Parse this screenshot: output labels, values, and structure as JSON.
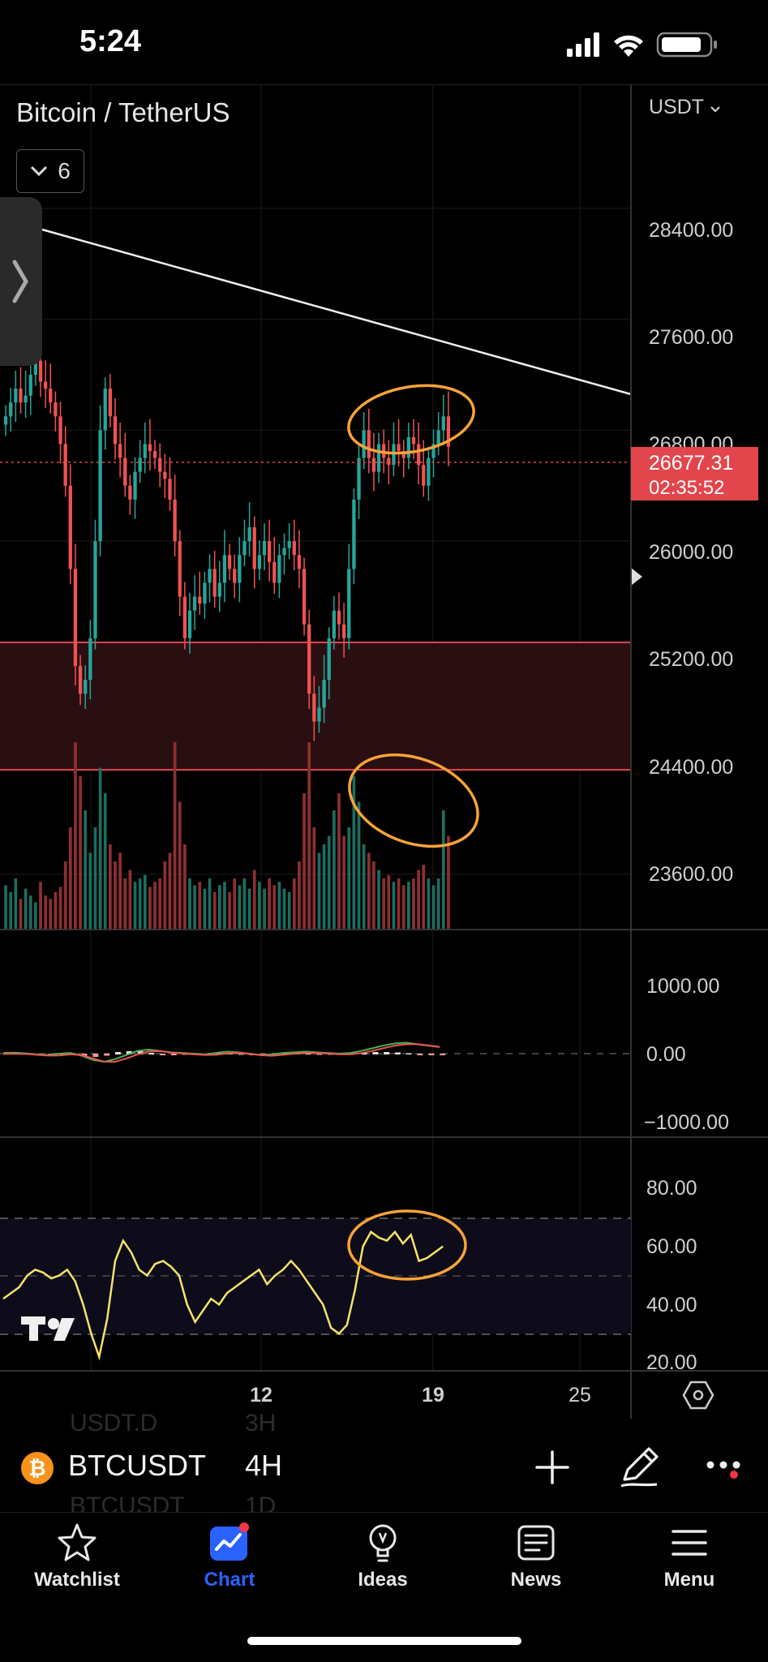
{
  "status_bar": {
    "time": "5:24"
  },
  "header": {
    "pair_title": "Bitcoin / TetherUS",
    "indicator_count": "6",
    "currency": "USDT"
  },
  "price_axis": {
    "labels": [
      "28400.00",
      "27600.00",
      "26800.00",
      "26000.00",
      "25200.00",
      "24400.00",
      "23600.00"
    ],
    "current_price": "26677.31",
    "countdown": "02:35:52"
  },
  "macd_axis": {
    "labels": [
      "1000.00",
      "0.00",
      "−1000.00"
    ]
  },
  "rsi_axis": {
    "labels": [
      "80.00",
      "60.00",
      "40.00",
      "20.00"
    ]
  },
  "time_axis": {
    "labels": [
      "12",
      "19",
      "25"
    ]
  },
  "colors": {
    "up": "#26a69a",
    "down": "#ef5350",
    "annotation": "#f7a23a",
    "rsi_line": "#f5e36b",
    "zone_fill": "#2a0f12",
    "zone_border": "#e2454b",
    "price_tag": "#e2454b",
    "accent": "#2962ff"
  },
  "toolbar": {
    "symbol": "BTCUSDT",
    "interval": "4H",
    "coin_glyph": "₿",
    "ghost_above": {
      "symbol": "USDT.D",
      "interval": "3H"
    },
    "ghost_below": {
      "symbol": "BTCUSDT",
      "interval": "1D"
    }
  },
  "tabs": [
    {
      "label": "Watchlist",
      "icon": "star-icon"
    },
    {
      "label": "Chart",
      "icon": "chart-icon"
    },
    {
      "label": "Ideas",
      "icon": "lightbulb-icon"
    },
    {
      "label": "News",
      "icon": "newspaper-icon"
    },
    {
      "label": "Menu",
      "icon": "hamburger-icon"
    }
  ],
  "chart_data": {
    "type": "candlestick",
    "symbol": "BTCUSDT",
    "interval": "4H",
    "price_range": [
      23200,
      29200
    ],
    "last_price": 26677.31,
    "x_ticks": [
      "12",
      "19",
      "25"
    ],
    "support_zone": [
      24400,
      25350
    ],
    "trendline": [
      [
        0,
        28500
      ],
      [
        148,
        27190
      ]
    ],
    "close": [
      26900,
      27000,
      27100,
      27000,
      27050,
      27200,
      27300,
      27150,
      27100,
      27000,
      26900,
      26700,
      26400,
      25800,
      25100,
      24900,
      25000,
      25300,
      26000,
      26800,
      27100,
      26900,
      26700,
      26600,
      26400,
      26300,
      26500,
      26600,
      26700,
      26650,
      26600,
      26500,
      26450,
      26300,
      26000,
      25600,
      25300,
      25500,
      25600,
      25550,
      25700,
      25800,
      25600,
      25700,
      25900,
      25800,
      25700,
      25900,
      26000,
      26100,
      25800,
      25900,
      26000,
      25850,
      25700,
      25900,
      25950,
      26000,
      25900,
      25800,
      25400,
      24900,
      24700,
      24800,
      25000,
      25300,
      25500,
      25400,
      25300,
      25800,
      26300,
      26600,
      26800,
      26600,
      26500,
      26700,
      26600,
      26550,
      26700,
      26650,
      26600,
      26750,
      26700,
      26550,
      26400,
      26600,
      26700,
      26800,
      26900,
      26680
    ],
    "volume": [
      26,
      22,
      30,
      18,
      24,
      20,
      16,
      28,
      20,
      18,
      22,
      25,
      40,
      60,
      110,
      90,
      70,
      45,
      60,
      95,
      80,
      50,
      40,
      45,
      30,
      35,
      28,
      30,
      32,
      25,
      28,
      30,
      40,
      45,
      110,
      75,
      50,
      30,
      26,
      28,
      24,
      30,
      22,
      26,
      28,
      22,
      30,
      26,
      30,
      24,
      35,
      28,
      24,
      30,
      26,
      28,
      24,
      22,
      30,
      40,
      80,
      110,
      60,
      45,
      50,
      55,
      70,
      80,
      55,
      60,
      90,
      75,
      50,
      45,
      40,
      35,
      30,
      32,
      28,
      30,
      26,
      28,
      30,
      35,
      38,
      30,
      26,
      30,
      70,
      55
    ],
    "macd": {
      "range": [
        -1000,
        1000
      ],
      "values": [
        10,
        15,
        5,
        -10,
        -20,
        0,
        10,
        -30,
        -90,
        -120,
        -80,
        -20,
        40,
        60,
        40,
        20,
        10,
        0,
        -10,
        10,
        30,
        20,
        0,
        -20,
        -10,
        10,
        20,
        30,
        20,
        10,
        0,
        10,
        40,
        80,
        120,
        150,
        160,
        140,
        120,
        100
      ]
    },
    "rsi": {
      "range": [
        20,
        80
      ],
      "bands": [
        30,
        70
      ],
      "values": [
        42,
        44,
        46,
        50,
        52,
        51,
        49,
        50,
        52,
        48,
        40,
        30,
        22,
        35,
        55,
        62,
        58,
        52,
        50,
        54,
        55,
        53,
        50,
        40,
        34,
        38,
        42,
        40,
        44,
        46,
        48,
        50,
        52,
        47,
        50,
        52,
        55,
        52,
        48,
        44,
        40,
        32,
        30,
        33,
        45,
        60,
        65,
        63,
        62,
        65,
        61,
        64,
        55,
        56,
        58,
        60
      ]
    }
  }
}
